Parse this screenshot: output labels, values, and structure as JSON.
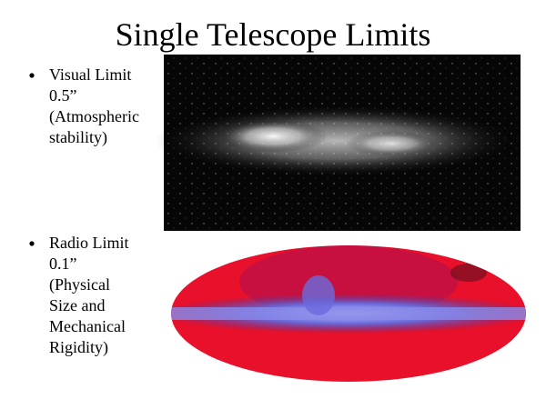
{
  "title": "Single Telescope Limits",
  "bullets": [
    {
      "lines": [
        "Visual Limit",
        "0.5”",
        "(Atmospheric",
        "stability)"
      ]
    },
    {
      "lines": [
        "Radio Limit",
        "0.1”",
        "(Physical",
        "Size and",
        "Mechanical",
        "Rigidity)"
      ]
    }
  ]
}
